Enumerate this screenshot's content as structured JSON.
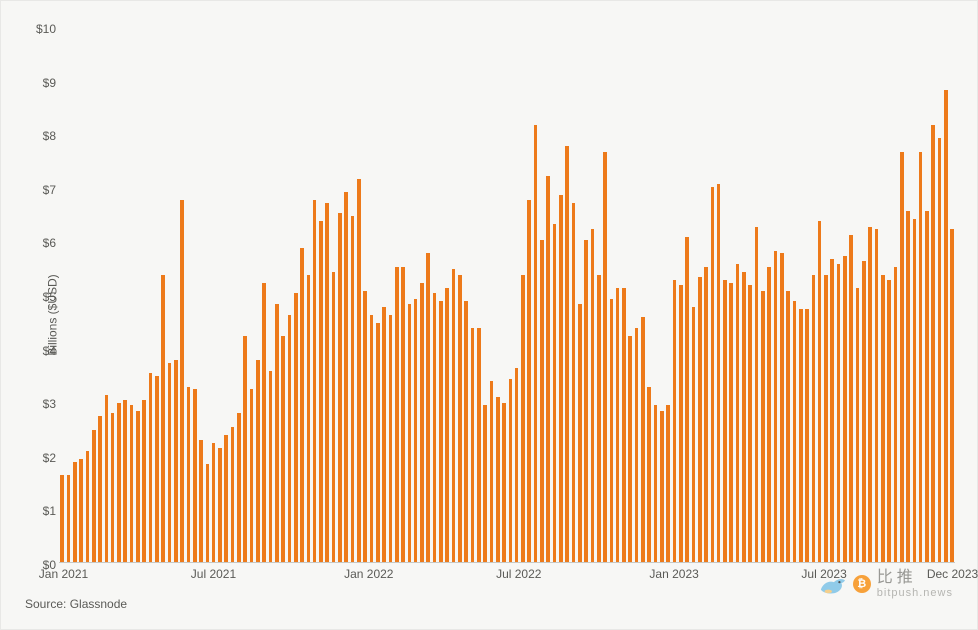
{
  "chart": {
    "type": "bar",
    "y_axis_label": "Billions ($USD)",
    "ylim": [
      0,
      10
    ],
    "y_ticks": [
      {
        "v": 0,
        "label": "$0"
      },
      {
        "v": 1,
        "label": "$1"
      },
      {
        "v": 2,
        "label": "$2"
      },
      {
        "v": 3,
        "label": "$3"
      },
      {
        "v": 4,
        "label": "$4"
      },
      {
        "v": 5,
        "label": "$5"
      },
      {
        "v": 6,
        "label": "$6"
      },
      {
        "v": 7,
        "label": "$7"
      },
      {
        "v": 8,
        "label": "$8"
      },
      {
        "v": 9,
        "label": "$9"
      },
      {
        "v": 10,
        "label": "$10"
      }
    ],
    "x_ticks": [
      {
        "pos": 0.005,
        "label": "Jan 2021"
      },
      {
        "pos": 0.172,
        "label": "Jul 2021"
      },
      {
        "pos": 0.345,
        "label": "Jan 2022"
      },
      {
        "pos": 0.512,
        "label": "Jul 2022"
      },
      {
        "pos": 0.685,
        "label": "Jan 2023"
      },
      {
        "pos": 0.852,
        "label": "Jul 2023"
      },
      {
        "pos": 0.995,
        "label": "Dec 2023"
      }
    ],
    "bar_color": "#ed7a1a",
    "background_color": "#f7f7f5",
    "axis_text_color": "#5a5a56",
    "values": [
      1.65,
      1.65,
      1.9,
      1.95,
      2.1,
      2.5,
      2.75,
      3.15,
      2.8,
      3.0,
      3.05,
      2.95,
      2.85,
      3.05,
      3.55,
      3.5,
      5.4,
      3.75,
      3.8,
      6.8,
      3.3,
      3.25,
      2.3,
      1.85,
      2.25,
      2.15,
      2.4,
      2.55,
      2.8,
      4.25,
      3.25,
      3.8,
      5.25,
      3.6,
      4.85,
      4.25,
      4.65,
      5.05,
      5.9,
      5.4,
      6.8,
      6.4,
      6.75,
      5.45,
      6.55,
      6.95,
      6.5,
      7.2,
      5.1,
      4.65,
      4.5,
      4.8,
      4.65,
      5.55,
      5.55,
      4.85,
      4.95,
      5.25,
      5.8,
      5.05,
      4.9,
      5.15,
      5.5,
      5.4,
      4.9,
      4.4,
      4.4,
      2.95,
      3.4,
      3.1,
      3.0,
      3.45,
      3.65,
      5.4,
      6.8,
      8.2,
      6.05,
      7.25,
      6.35,
      6.9,
      7.8,
      6.75,
      4.85,
      6.05,
      6.25,
      5.4,
      7.7,
      4.95,
      5.15,
      5.15,
      4.25,
      4.4,
      4.6,
      3.3,
      2.95,
      2.85,
      2.95,
      5.3,
      5.2,
      6.1,
      4.8,
      5.35,
      5.55,
      7.05,
      7.1,
      5.3,
      5.25,
      5.6,
      5.45,
      5.2,
      6.3,
      5.1,
      5.55,
      5.85,
      5.8,
      5.1,
      4.9,
      4.75,
      4.75,
      5.4,
      6.4,
      5.4,
      5.7,
      5.6,
      5.75,
      6.15,
      5.15,
      5.65,
      6.3,
      6.25,
      5.4,
      5.3,
      5.55,
      7.7,
      6.6,
      6.45,
      7.7,
      6.6,
      8.2,
      7.95,
      8.85,
      6.25
    ],
    "source": "Source: Glassnode"
  },
  "watermark": {
    "cn": "比推",
    "url": "bitpush.news",
    "coin_glyph": "₿"
  }
}
